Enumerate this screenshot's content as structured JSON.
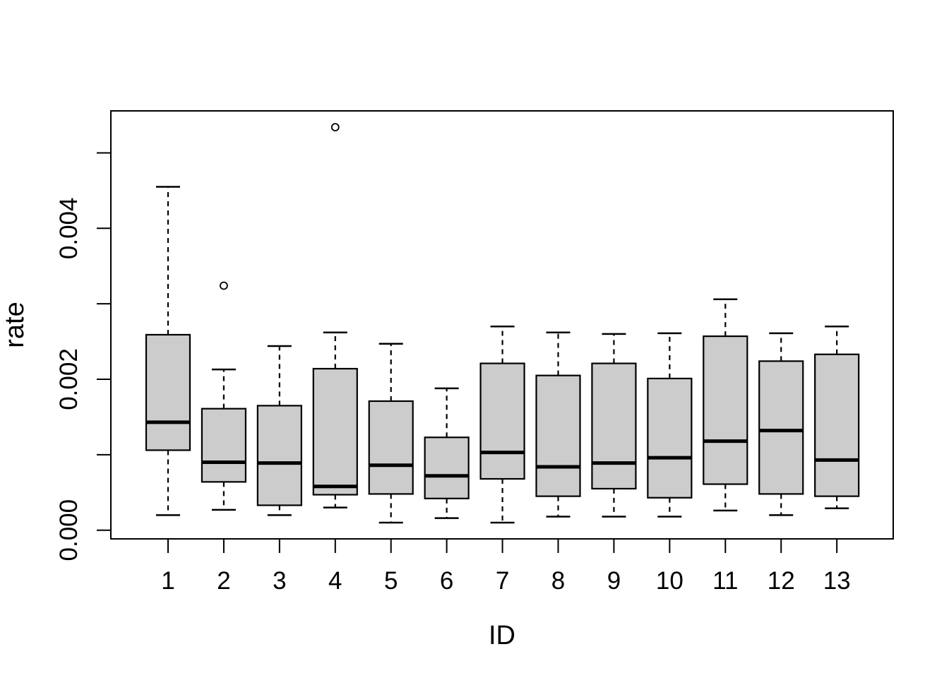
{
  "figure": {
    "background": "#ffffff",
    "axis_color": "#000000"
  },
  "chart_data": {
    "type": "boxplot",
    "title": "",
    "xlabel": "ID",
    "ylabel": "rate",
    "categories": [
      "1",
      "2",
      "3",
      "4",
      "5",
      "6",
      "7",
      "8",
      "9",
      "10",
      "11",
      "12",
      "13"
    ],
    "ylim": [
      0,
      0.0055
    ],
    "y_axis": {
      "label": "rate",
      "tick_values": [
        0,
        0.001,
        0.002,
        0.003,
        0.004,
        0.005
      ],
      "tick_labels": [
        "0.000",
        "",
        "0.002",
        "",
        "0.004",
        ""
      ]
    },
    "x_axis": {
      "label": "ID",
      "tick_labels": [
        "1",
        "2",
        "3",
        "4",
        "5",
        "6",
        "7",
        "8",
        "9",
        "10",
        "11",
        "12",
        "13"
      ]
    },
    "series": [
      {
        "id": "1",
        "whisker_low": 0.0002,
        "q1": 0.00106,
        "median": 0.00143,
        "q3": 0.00259,
        "whisker_high": 0.00455,
        "outliers": []
      },
      {
        "id": "2",
        "whisker_low": 0.00027,
        "q1": 0.00064,
        "median": 0.0009,
        "q3": 0.00161,
        "whisker_high": 0.00213,
        "outliers": [
          0.00324
        ]
      },
      {
        "id": "3",
        "whisker_low": 0.0002,
        "q1": 0.00033,
        "median": 0.00089,
        "q3": 0.00165,
        "whisker_high": 0.00244,
        "outliers": []
      },
      {
        "id": "4",
        "whisker_low": 0.0003,
        "q1": 0.00047,
        "median": 0.00058,
        "q3": 0.00214,
        "whisker_high": 0.00262,
        "outliers": [
          0.00534
        ]
      },
      {
        "id": "5",
        "whisker_low": 0.0001,
        "q1": 0.00048,
        "median": 0.00086,
        "q3": 0.00171,
        "whisker_high": 0.00247,
        "outliers": []
      },
      {
        "id": "6",
        "whisker_low": 0.00016,
        "q1": 0.00042,
        "median": 0.00072,
        "q3": 0.00123,
        "whisker_high": 0.00188,
        "outliers": []
      },
      {
        "id": "7",
        "whisker_low": 0.0001,
        "q1": 0.00068,
        "median": 0.00103,
        "q3": 0.00221,
        "whisker_high": 0.0027,
        "outliers": []
      },
      {
        "id": "8",
        "whisker_low": 0.00018,
        "q1": 0.00045,
        "median": 0.00084,
        "q3": 0.00205,
        "whisker_high": 0.00262,
        "outliers": []
      },
      {
        "id": "9",
        "whisker_low": 0.00018,
        "q1": 0.00055,
        "median": 0.00089,
        "q3": 0.00221,
        "whisker_high": 0.0026,
        "outliers": []
      },
      {
        "id": "10",
        "whisker_low": 0.00018,
        "q1": 0.00043,
        "median": 0.00096,
        "q3": 0.00201,
        "whisker_high": 0.00261,
        "outliers": []
      },
      {
        "id": "11",
        "whisker_low": 0.00026,
        "q1": 0.00061,
        "median": 0.00118,
        "q3": 0.00257,
        "whisker_high": 0.00306,
        "outliers": []
      },
      {
        "id": "12",
        "whisker_low": 0.0002,
        "q1": 0.00048,
        "median": 0.00132,
        "q3": 0.00224,
        "whisker_high": 0.00261,
        "outliers": []
      },
      {
        "id": "13",
        "whisker_low": 0.00029,
        "q1": 0.00045,
        "median": 0.00093,
        "q3": 0.00233,
        "whisker_high": 0.0027,
        "outliers": []
      }
    ],
    "style": {
      "box_fill": "#cccccc",
      "line_color": "#000000",
      "background": "#ffffff"
    },
    "layout_hints": {
      "grid": false,
      "legend": "none",
      "frame": true
    }
  }
}
